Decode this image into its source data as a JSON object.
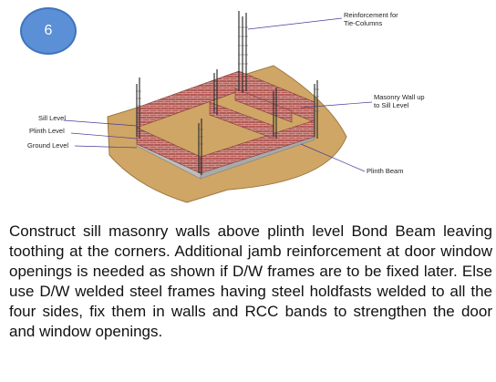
{
  "badge": {
    "number": "6"
  },
  "labels": {
    "reinforcement": "Reinforcement for\nTie-Columns",
    "masonry_wall": "Masonry Wall up\nto Sill Level",
    "sill_level": "Sill Level",
    "plinth_level": "Plinth Level",
    "ground_level": "Ground Level",
    "plinth_beam": "Plinth Beam"
  },
  "colors": {
    "ground": "#cfa665",
    "brick": "#b55a56",
    "beam": "#bdbdbd",
    "badge": "#5b8fd6",
    "label_line": "#4a3d9a"
  },
  "paragraph": "Construct sill masonry walls above plinth level Bond Beam leaving toothing at the corners. Additional jamb reinforcement at door window openings is needed as shown if D/W frames are to be fixed later. Else use D/W welded steel frames having steel holdfasts welded to all the four sides, fix them in walls and RCC bands to strengthen the door and window openings."
}
